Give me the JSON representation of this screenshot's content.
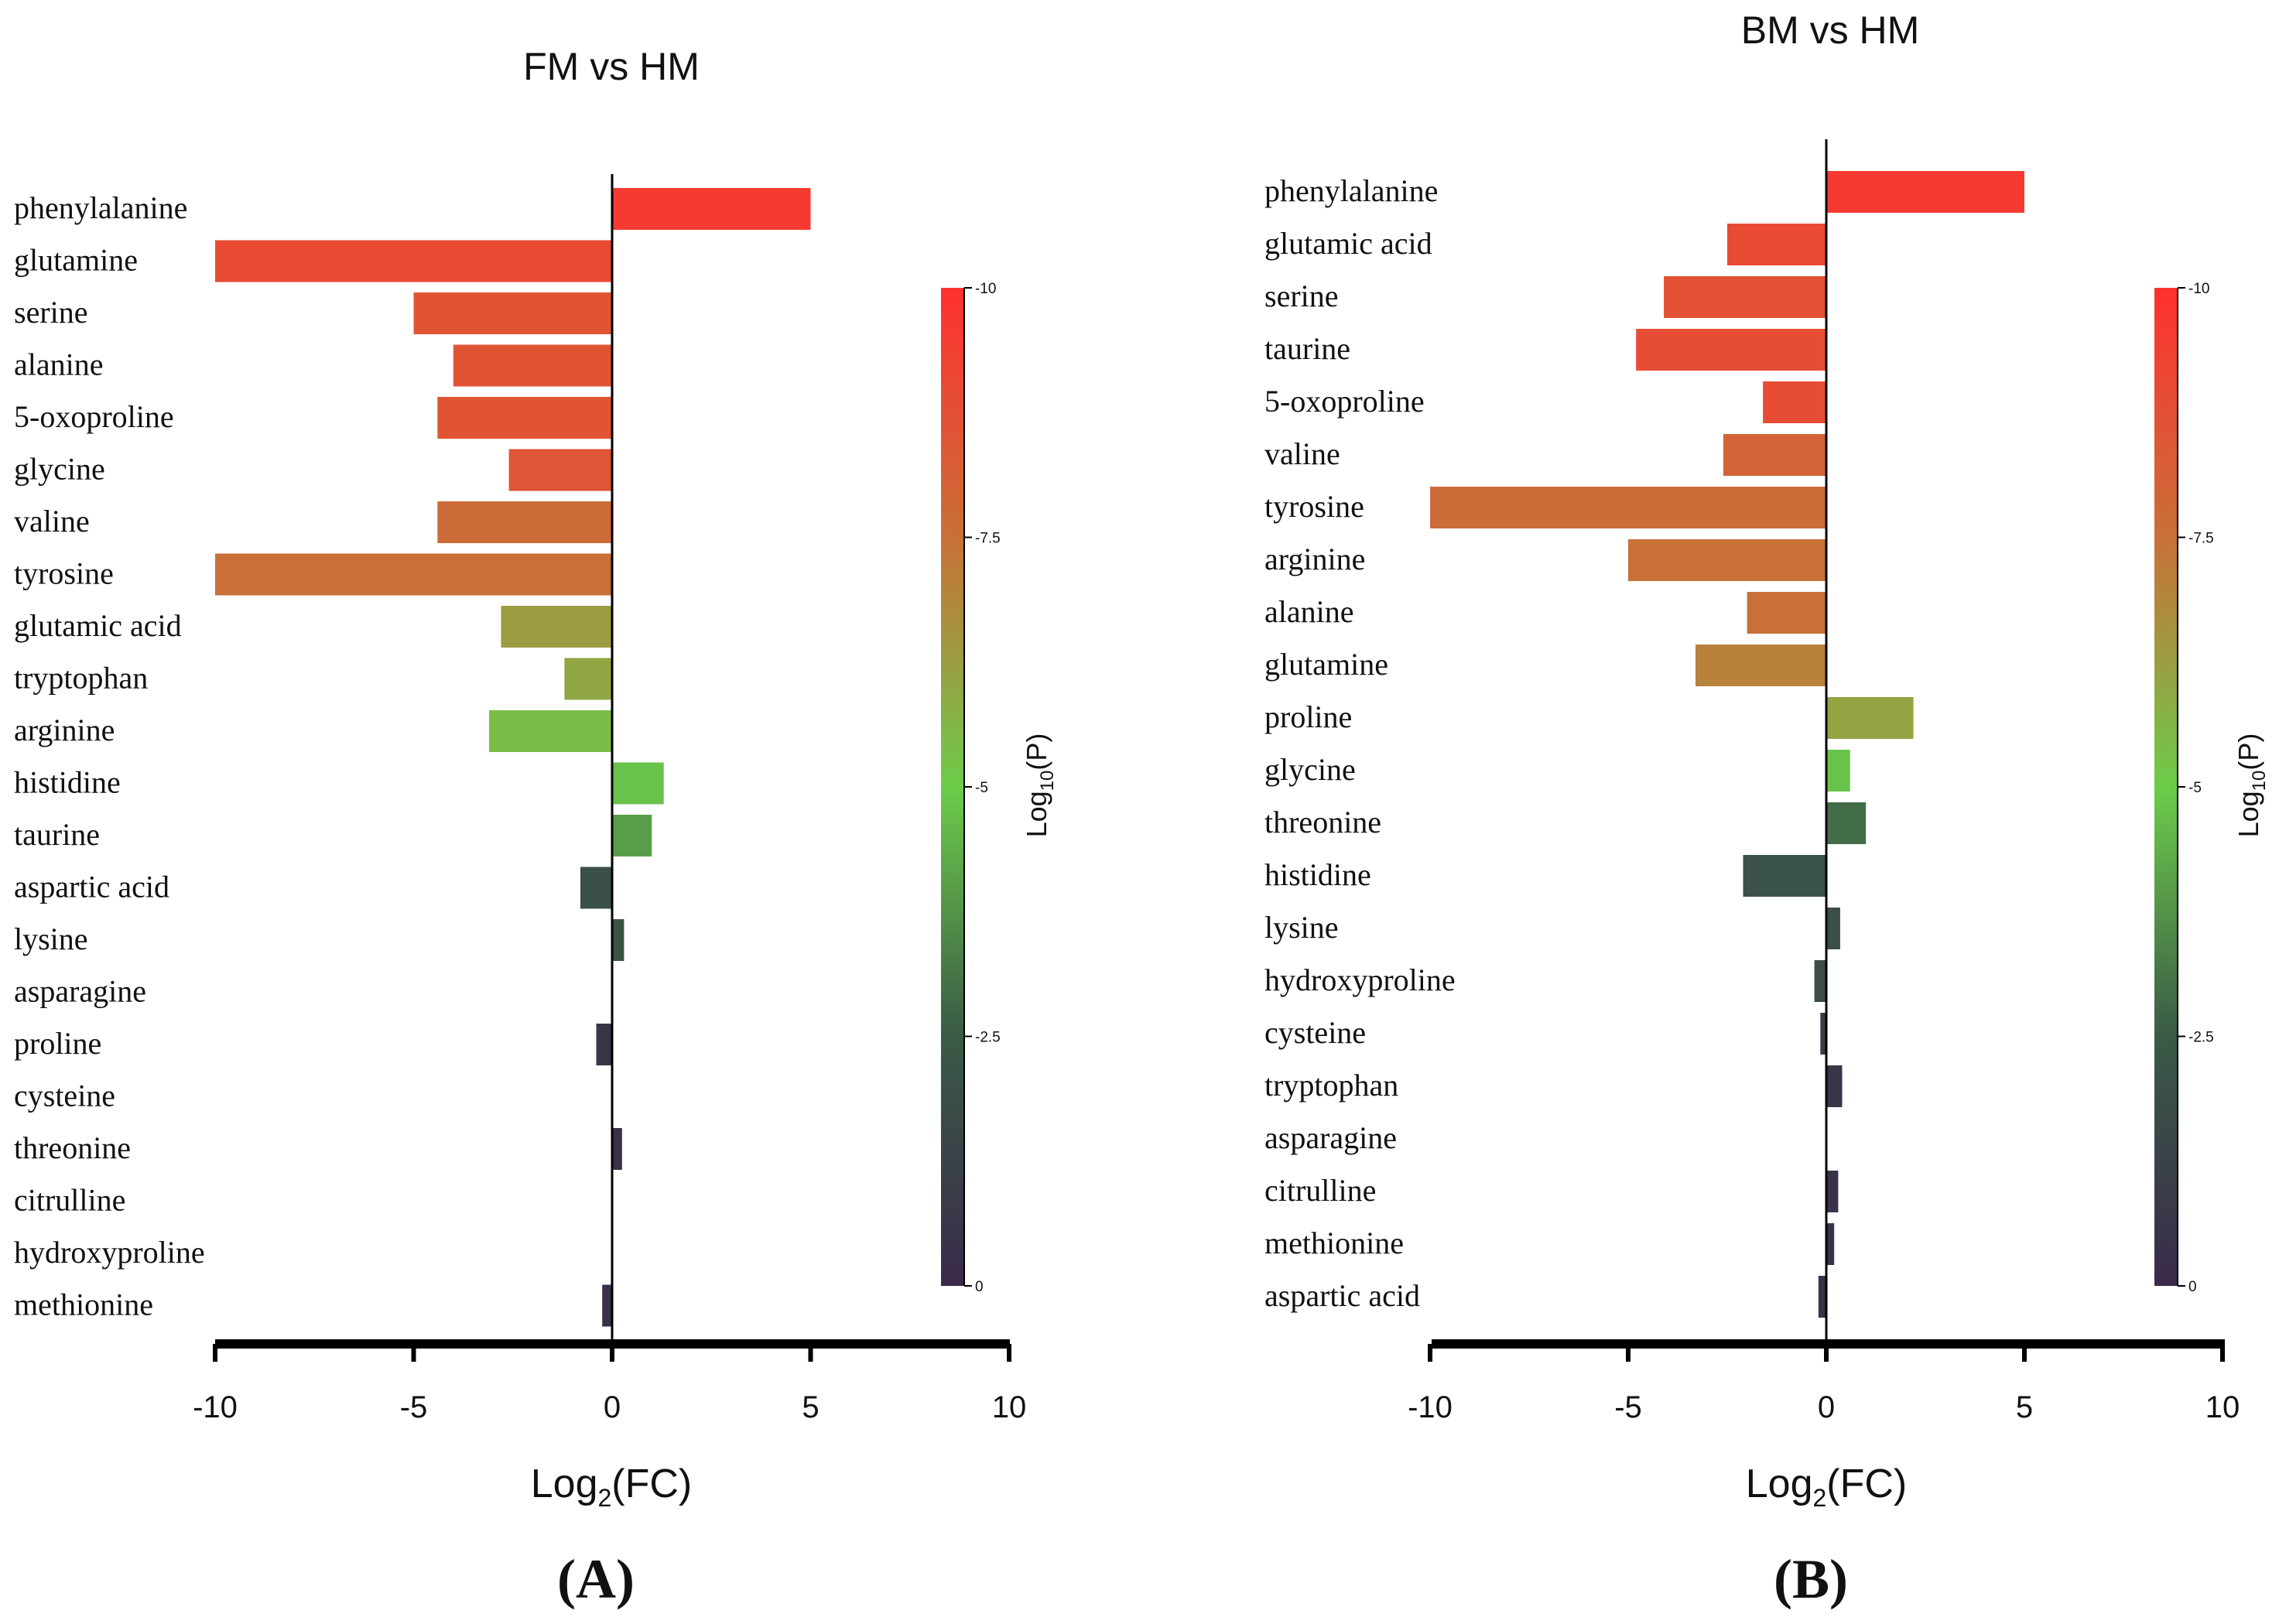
{
  "chart_data": [
    {
      "type": "bar",
      "orientation": "horizontal",
      "title": "FM vs HM",
      "panel_label": "(A)",
      "xlabel_main": "Log",
      "xlabel_sub": "2",
      "xlabel_tail": "(FC)",
      "xlim": [
        -10,
        10
      ],
      "xticks": [
        "-10",
        "-5",
        "0",
        "5",
        "10"
      ],
      "categories": [
        "phenylalanine",
        "glutamine",
        "serine",
        "alanine",
        "5-oxoproline",
        "glycine",
        "valine",
        "tyrosine",
        "glutamic acid",
        "tryptophan",
        "arginine",
        "histidine",
        "taurine",
        "aspartic acid",
        "lysine",
        "asparagine",
        "proline",
        "cysteine",
        "threonine",
        "citrulline",
        "hydroxyproline",
        "methionine"
      ],
      "values": [
        5.0,
        -10.0,
        -5.0,
        -4.0,
        -4.4,
        -2.6,
        -4.4,
        -10.0,
        -2.8,
        -1.2,
        -3.1,
        1.3,
        1.0,
        -0.8,
        0.3,
        0.0,
        -0.4,
        0.0,
        0.25,
        0.0,
        0.0,
        -0.25
      ],
      "log10_p": [
        -9.6,
        -9.0,
        -8.6,
        -8.6,
        -8.6,
        -8.5,
        -7.7,
        -7.5,
        -6.3,
        -6.0,
        -5.4,
        -4.8,
        -4.0,
        -2.0,
        -2.2,
        0,
        -0.5,
        0,
        -0.3,
        0,
        0,
        -0.3
      ],
      "colorbar": {
        "label_main": "Log",
        "label_sub": "10",
        "label_tail": "(P)",
        "range": [
          0,
          -10
        ],
        "ticks": [
          "-10",
          "-7.5",
          "-5",
          "-2.5",
          "0"
        ]
      }
    },
    {
      "type": "bar",
      "orientation": "horizontal",
      "title": "BM vs HM",
      "panel_label": "(B)",
      "xlabel_main": "Log",
      "xlabel_sub": "2",
      "xlabel_tail": "(FC)",
      "xlim": [
        -10,
        10
      ],
      "xticks": [
        "-10",
        "-5",
        "0",
        "5",
        "10"
      ],
      "categories": [
        "phenylalanine",
        "glutamic acid",
        "serine",
        "taurine",
        "5-oxoproline",
        "valine",
        "tyrosine",
        "arginine",
        "alanine",
        "glutamine",
        "proline",
        "glycine",
        "threonine",
        "histidine",
        "lysine",
        "hydroxyproline",
        "cysteine",
        "tryptophan",
        "asparagine",
        "citrulline",
        "methionine",
        "aspartic acid"
      ],
      "values": [
        5.0,
        -2.5,
        -4.1,
        -4.8,
        -1.6,
        -2.6,
        -10.0,
        -5.0,
        -2.0,
        -3.3,
        2.2,
        0.6,
        1.0,
        -2.1,
        0.35,
        -0.3,
        -0.15,
        0.4,
        0.0,
        0.3,
        0.2,
        -0.2
      ],
      "log10_p": [
        -9.6,
        -9.0,
        -8.7,
        -8.9,
        -8.9,
        -8.0,
        -7.6,
        -7.5,
        -7.5,
        -7.0,
        -6.1,
        -4.8,
        -2.9,
        -2.1,
        -1.8,
        -1.8,
        -1.0,
        -0.5,
        0,
        -0.4,
        -0.4,
        -0.4
      ],
      "colorbar": {
        "label_main": "Log",
        "label_sub": "10",
        "label_tail": "(P)",
        "range": [
          0,
          -10
        ],
        "ticks": [
          "-10",
          "-7.5",
          "-5",
          "-2.5",
          "0"
        ]
      }
    }
  ]
}
